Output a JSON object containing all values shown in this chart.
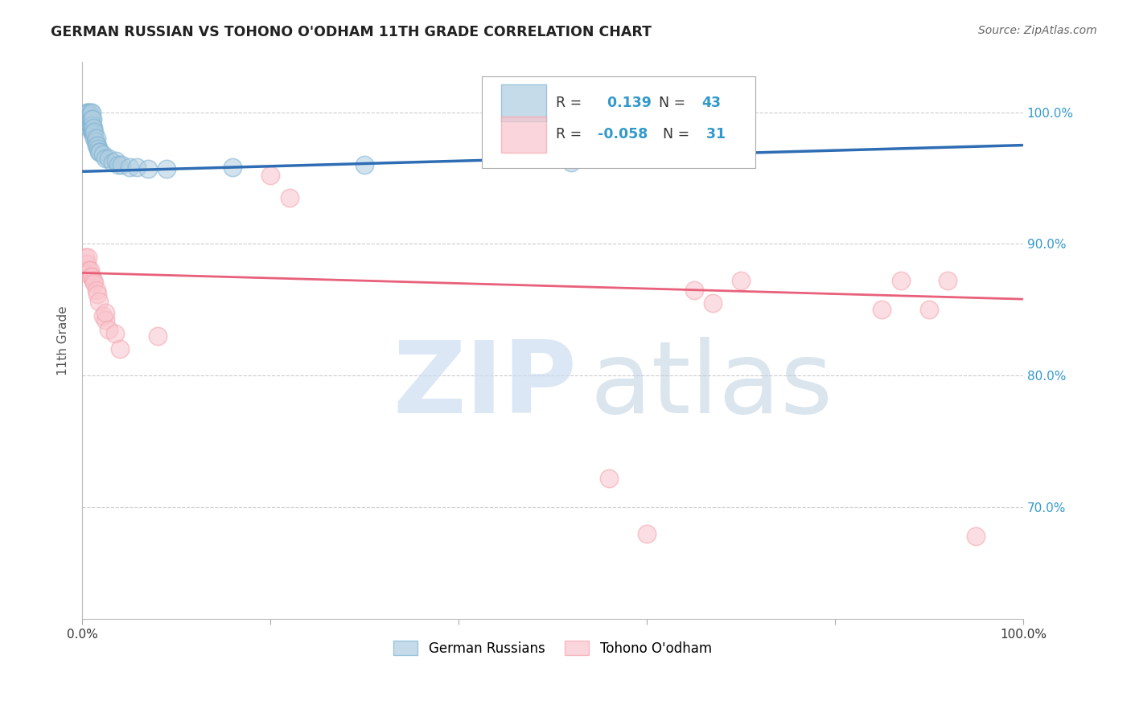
{
  "title": "GERMAN RUSSIAN VS TOHONO O'ODHAM 11TH GRADE CORRELATION CHART",
  "source": "Source: ZipAtlas.com",
  "ylabel": "11th Grade",
  "ytick_labels": [
    "100.0%",
    "90.0%",
    "80.0%",
    "70.0%"
  ],
  "ytick_values": [
    1.0,
    0.9,
    0.8,
    0.7
  ],
  "xlim": [
    0.0,
    1.0
  ],
  "ylim": [
    0.615,
    1.038
  ],
  "legend_r_blue": "0.139",
  "legend_n_blue": "43",
  "legend_r_pink": "-0.058",
  "legend_n_pink": "31",
  "blue_color": "#7fb3d3",
  "pink_color": "#f4a5b0",
  "blue_fill_color": "#aecde0",
  "pink_fill_color": "#f9c4cc",
  "line_blue_color": "#2e6db4",
  "line_pink_color": "#e8607a",
  "background_color": "#ffffff",
  "grid_color": "#cccccc",
  "blue_scatter_x": [
    0.003,
    0.005,
    0.006,
    0.006,
    0.007,
    0.007,
    0.008,
    0.008,
    0.009,
    0.009,
    0.009,
    0.01,
    0.01,
    0.01,
    0.01,
    0.011,
    0.011,
    0.011,
    0.012,
    0.012,
    0.013,
    0.013,
    0.014,
    0.015,
    0.015,
    0.016,
    0.017,
    0.018,
    0.019,
    0.022,
    0.025,
    0.028,
    0.032,
    0.036,
    0.038,
    0.042,
    0.05,
    0.058,
    0.07,
    0.09,
    0.16,
    0.3,
    0.52
  ],
  "blue_scatter_y": [
    0.99,
    1.0,
    0.995,
    1.0,
    0.995,
    1.0,
    0.99,
    0.998,
    0.99,
    0.995,
    1.0,
    0.985,
    0.99,
    0.995,
    1.0,
    0.985,
    0.99,
    0.995,
    0.983,
    0.988,
    0.98,
    0.985,
    0.978,
    0.975,
    0.98,
    0.975,
    0.972,
    0.97,
    0.97,
    0.968,
    0.965,
    0.965,
    0.962,
    0.963,
    0.96,
    0.96,
    0.958,
    0.958,
    0.957,
    0.957,
    0.958,
    0.96,
    0.962
  ],
  "pink_scatter_x": [
    0.003,
    0.005,
    0.006,
    0.007,
    0.008,
    0.009,
    0.01,
    0.012,
    0.013,
    0.015,
    0.016,
    0.018,
    0.022,
    0.025,
    0.025,
    0.028,
    0.035,
    0.04,
    0.08,
    0.2,
    0.22,
    0.56,
    0.6,
    0.65,
    0.67,
    0.7,
    0.85,
    0.87,
    0.9,
    0.92,
    0.95
  ],
  "pink_scatter_y": [
    0.89,
    0.885,
    0.89,
    0.88,
    0.88,
    0.875,
    0.875,
    0.872,
    0.87,
    0.865,
    0.862,
    0.856,
    0.845,
    0.842,
    0.848,
    0.835,
    0.832,
    0.82,
    0.83,
    0.952,
    0.935,
    0.722,
    0.68,
    0.865,
    0.855,
    0.872,
    0.85,
    0.872,
    0.85,
    0.872,
    0.678
  ],
  "blue_line_x": [
    0.0,
    1.0
  ],
  "blue_line_y": [
    0.955,
    0.975
  ],
  "pink_line_x": [
    0.0,
    1.0
  ],
  "pink_line_y": [
    0.878,
    0.858
  ],
  "watermark_zip_color": "#ccddf0",
  "watermark_atlas_color": "#b8ccde"
}
